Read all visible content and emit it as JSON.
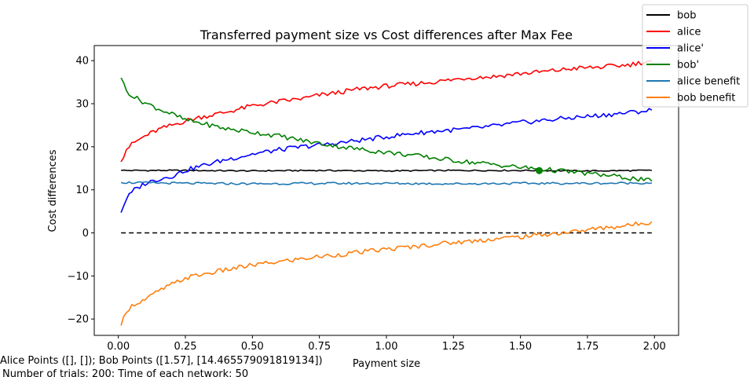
{
  "chart_data": {
    "type": "line",
    "title": "Transferred payment size vs Cost differences after Max Fee",
    "xlabel": "Payment size",
    "ylabel": "Cost differences",
    "xlim": [
      -0.09,
      2.09
    ],
    "ylim": [
      -23.8,
      43.5
    ],
    "xticks": [
      0.0,
      0.25,
      0.5,
      0.75,
      1.0,
      1.25,
      1.5,
      1.75,
      2.0
    ],
    "xtick_labels": [
      "0.00",
      "0.25",
      "0.50",
      "0.75",
      "1.00",
      "1.25",
      "1.50",
      "1.75",
      "2.00"
    ],
    "yticks": [
      -20,
      -10,
      0,
      10,
      20,
      30,
      40
    ],
    "ytick_labels": [
      "−20",
      "−10",
      "0",
      "10",
      "20",
      "30",
      "40"
    ],
    "grid": false,
    "legend_position": "top-right",
    "series": [
      {
        "name": "bob",
        "color": "#000000",
        "x": [
          0.01,
          0.25,
          0.5,
          0.75,
          1.0,
          1.25,
          1.5,
          1.75,
          1.99
        ],
        "y": [
          14.5,
          14.5,
          14.4,
          14.5,
          14.4,
          14.5,
          14.5,
          14.4,
          14.5
        ]
      },
      {
        "name": "alice",
        "color": "#ff0000",
        "x": [
          0.01,
          0.03,
          0.06,
          0.1,
          0.15,
          0.2,
          0.25,
          0.3,
          0.4,
          0.5,
          0.6,
          0.7,
          0.75,
          0.8,
          0.9,
          1.0,
          1.1,
          1.2,
          1.3,
          1.4,
          1.5,
          1.6,
          1.7,
          1.8,
          1.9,
          1.99
        ],
        "y": [
          16.5,
          19.5,
          21,
          22.5,
          24,
          25,
          26,
          26.8,
          28,
          29.5,
          30.5,
          31.3,
          32,
          32.4,
          33.4,
          34.1,
          34.6,
          35.2,
          36,
          36.3,
          37,
          37.5,
          38.2,
          38.5,
          39,
          40
        ]
      },
      {
        "name": "alice'",
        "color": "#0000ff",
        "x": [
          0.01,
          0.03,
          0.06,
          0.1,
          0.15,
          0.2,
          0.25,
          0.3,
          0.4,
          0.5,
          0.6,
          0.7,
          0.75,
          0.8,
          0.9,
          1.0,
          1.1,
          1.2,
          1.3,
          1.4,
          1.5,
          1.6,
          1.7,
          1.8,
          1.9,
          1.99
        ],
        "y": [
          4.7,
          8,
          10,
          11.5,
          12.5,
          13.2,
          14.5,
          15.4,
          17,
          18.3,
          19.3,
          20.1,
          20.4,
          20.7,
          21.5,
          22.3,
          23.1,
          23.7,
          24.1,
          24.8,
          25.6,
          26.2,
          26.8,
          27.3,
          27.9,
          28.5
        ]
      },
      {
        "name": "bob'",
        "color": "#008000",
        "x": [
          0.01,
          0.03,
          0.06,
          0.1,
          0.15,
          0.2,
          0.25,
          0.3,
          0.4,
          0.5,
          0.6,
          0.7,
          0.75,
          0.8,
          0.9,
          1.0,
          1.1,
          1.2,
          1.3,
          1.4,
          1.5,
          1.6,
          1.7,
          1.8,
          1.9,
          1.99
        ],
        "y": [
          36,
          33,
          31.5,
          30.2,
          28.8,
          27.6,
          26.2,
          25.6,
          24.2,
          23.4,
          22.5,
          21.3,
          20.8,
          20.3,
          19.4,
          18.7,
          18,
          17.2,
          16.5,
          15.9,
          15.2,
          14.7,
          14.1,
          13.5,
          12.8,
          12
        ]
      },
      {
        "name": "alice benefit",
        "color": "#1f77b4",
        "x": [
          0.01,
          0.25,
          0.5,
          0.75,
          1.0,
          1.25,
          1.5,
          1.75,
          1.99
        ],
        "y": [
          11.7,
          11.5,
          11.4,
          11.5,
          11.5,
          11.4,
          11.5,
          11.5,
          11.6
        ]
      },
      {
        "name": "bob benefit",
        "color": "#ff7f0e",
        "x": [
          0.01,
          0.03,
          0.06,
          0.1,
          0.15,
          0.2,
          0.25,
          0.3,
          0.4,
          0.5,
          0.6,
          0.7,
          0.75,
          0.8,
          0.9,
          1.0,
          1.1,
          1.2,
          1.3,
          1.4,
          1.5,
          1.6,
          1.7,
          1.8,
          1.9,
          1.99
        ],
        "y": [
          -21.5,
          -18,
          -16.5,
          -15.5,
          -13.5,
          -12,
          -10.5,
          -9.8,
          -8.6,
          -7.5,
          -6.7,
          -5.9,
          -5.5,
          -5.2,
          -4.5,
          -3.8,
          -3.2,
          -2.5,
          -2,
          -1.4,
          -0.9,
          -0.3,
          0.3,
          1.1,
          1.7,
          2.6
        ]
      }
    ],
    "reference_line": {
      "y": 0,
      "color": "#000000",
      "style": "dashed",
      "x": [
        0.01,
        1.99
      ]
    },
    "marker": {
      "x": 1.57,
      "y": 14.4656,
      "color": "#008000"
    }
  },
  "footer": {
    "line1": "Alice Points ([], []); Bob Points ([1.57], [14.465579091819134])",
    "line2": "Number of trials: 200: Time of each network: 50"
  }
}
